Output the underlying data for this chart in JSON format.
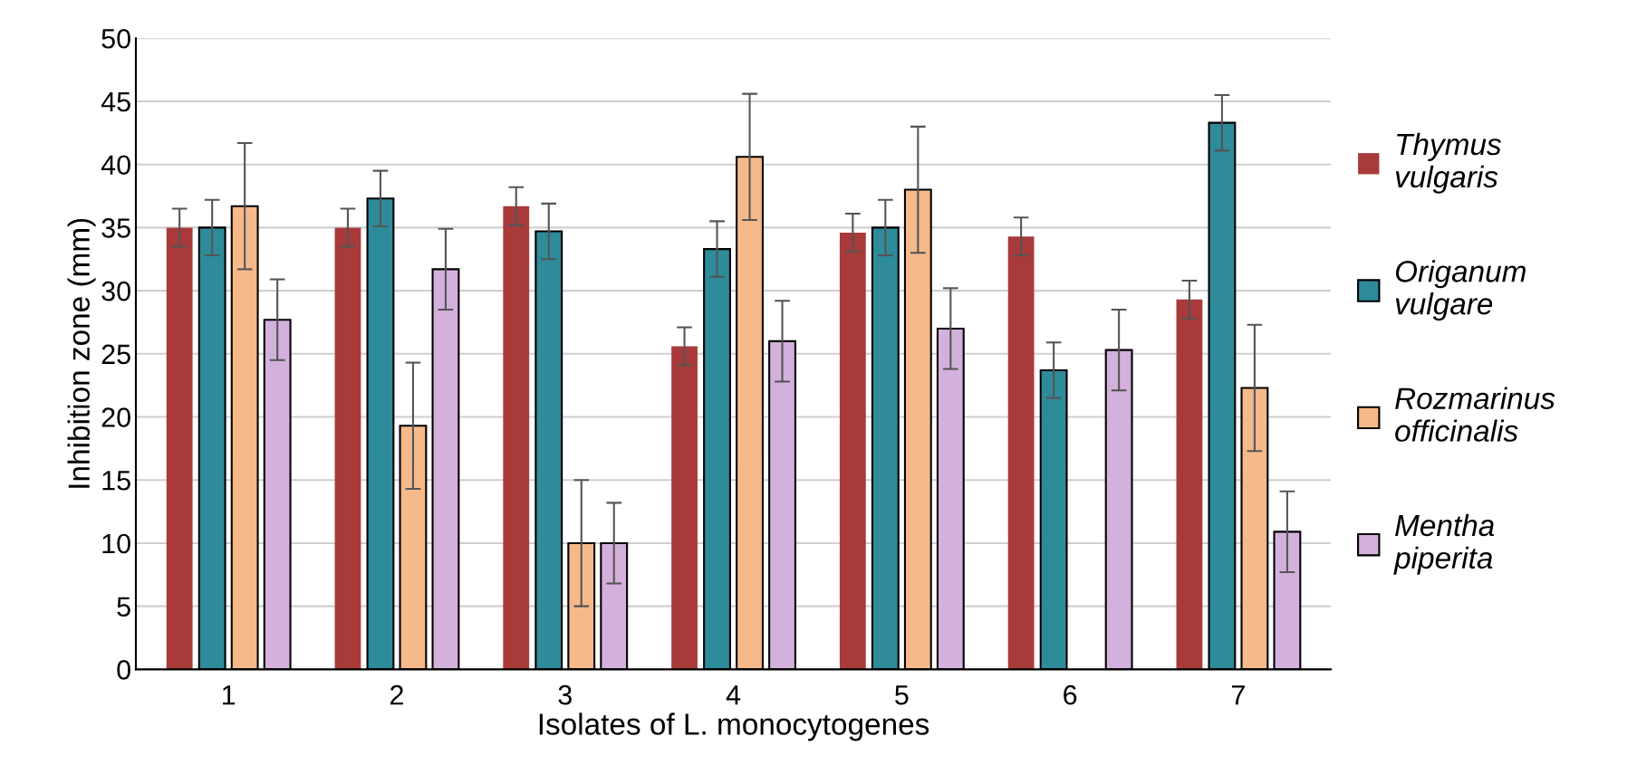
{
  "chart_data": {
    "type": "bar",
    "xlabel": "Isolates of L. monocytogenes",
    "ylabel": "Inhibition zone (mm)",
    "categories": [
      "1",
      "2",
      "3",
      "4",
      "5",
      "6",
      "7"
    ],
    "series": [
      {
        "name": "Thymus vulgaris",
        "color": "#a83a3a",
        "values": [
          35.0,
          35.0,
          36.7,
          25.6,
          34.6,
          34.3,
          29.3
        ],
        "errors": [
          1.5,
          1.5,
          1.5,
          1.5,
          1.5,
          1.5,
          1.5
        ]
      },
      {
        "name": "Origanum vulgare",
        "color": "#2e8b9a",
        "values": [
          35.0,
          37.3,
          34.7,
          33.3,
          35.0,
          23.7,
          43.3
        ],
        "errors": [
          2.2,
          2.2,
          2.2,
          2.2,
          2.2,
          2.2,
          2.2
        ]
      },
      {
        "name": "Rozmarinus officinalis",
        "color": "#f6b98a",
        "values": [
          36.7,
          19.3,
          10.0,
          40.6,
          38.0,
          null,
          22.3
        ],
        "errors": [
          5,
          5,
          5,
          5,
          5,
          null,
          5
        ]
      },
      {
        "name": "Mentha piperita",
        "color": "#d3b1dc",
        "values": [
          27.7,
          31.7,
          10.0,
          26.0,
          27.0,
          25.3,
          10.9
        ],
        "errors": [
          3.2,
          3.2,
          3.2,
          3.2,
          3.2,
          3.2,
          3.2
        ]
      }
    ],
    "ylim": [
      0,
      50
    ],
    "yticks": [
      0,
      5,
      10,
      15,
      20,
      25,
      30,
      35,
      40,
      45,
      50
    ],
    "grid": "y",
    "legend": "right"
  }
}
